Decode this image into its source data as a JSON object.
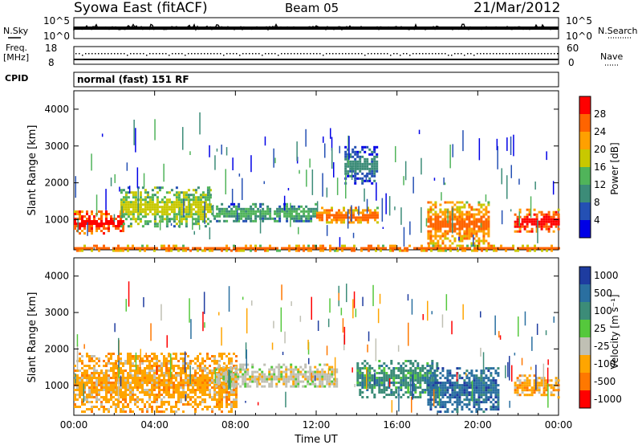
{
  "header": {
    "station": "Syowa East (fitACF)",
    "beam": "Beam 05",
    "date": "21/Mar/2012"
  },
  "top_panels": {
    "nsky_label": "N.Sky",
    "nsearch_label": "N.Search",
    "nsky_ticks": [
      "10^5",
      "10^0"
    ],
    "nsearch_ticks": [
      "10^5",
      "10^0"
    ],
    "freq_label_line1": "Freq.",
    "freq_label_line2": "[MHz]",
    "freq_ticks": [
      "18",
      "8"
    ],
    "nave_label": "Nave",
    "nave_ticks": [
      "60",
      "0"
    ],
    "cpid_label": "CPID",
    "cpid_text": "normal (fast) 151 RF"
  },
  "chart_data": [
    {
      "type": "heatmap",
      "name": "power",
      "title": "",
      "xlabel": "",
      "ylabel": "Slant Range [km]",
      "xlim": [
        "00:00",
        "24:00"
      ],
      "ylim": [
        180,
        4500
      ],
      "yticks": [
        "1000",
        "2000",
        "3000",
        "4000"
      ],
      "colorbar_label": "Power [dB]",
      "colorbar_ticks": [
        "4",
        "8",
        "12",
        "16",
        "20",
        "24",
        "28"
      ],
      "colors": [
        "#0000e6",
        "#2450b4",
        "#3c8c78",
        "#50b45a",
        "#c8c800",
        "#ffa000",
        "#ff6400",
        "#ff0000"
      ],
      "echo_regions": [
        {
          "t_start": 0.0,
          "t_end": 2.4,
          "r_min": 650,
          "r_max": 1250,
          "level": 7,
          "note": "strong"
        },
        {
          "t_start": 0.0,
          "t_end": 24.0,
          "r_min": 180,
          "r_max": 320,
          "level": 6
        },
        {
          "t_start": 2.3,
          "t_end": 6.8,
          "r_min": 800,
          "r_max": 1900,
          "level": 4
        },
        {
          "t_start": 6.8,
          "t_end": 12.0,
          "r_min": 950,
          "r_max": 1450,
          "level": 3
        },
        {
          "t_start": 12.0,
          "t_end": 15.0,
          "r_min": 900,
          "r_max": 1350,
          "level": 6
        },
        {
          "t_start": 13.4,
          "t_end": 15.0,
          "r_min": 2000,
          "r_max": 3000,
          "level": 2
        },
        {
          "t_start": 17.5,
          "t_end": 20.5,
          "r_min": 300,
          "r_max": 1500,
          "level": 6
        },
        {
          "t_start": 21.8,
          "t_end": 24.0,
          "r_min": 650,
          "r_max": 1300,
          "level": 7
        }
      ]
    },
    {
      "type": "heatmap",
      "name": "velocity",
      "title": "",
      "xlabel": "Time UT",
      "ylabel": "Slant Range [km]",
      "xlim": [
        "00:00",
        "24:00"
      ],
      "xticks": [
        "00:00",
        "04:00",
        "08:00",
        "12:00",
        "16:00",
        "20:00",
        "00:00"
      ],
      "ylim": [
        180,
        4500
      ],
      "yticks": [
        "1000",
        "2000",
        "3000",
        "4000"
      ],
      "colorbar_label": "Velocity [m s⁻¹]",
      "colorbar_ticks": [
        "1000",
        "500",
        "100",
        "25",
        "-25",
        "-100",
        "-500",
        "-1000"
      ],
      "colors": [
        "#1e3ca0",
        "#2a6fa0",
        "#3c8c78",
        "#55c83c",
        "#c0c0b4",
        "#ffa500",
        "#ff7800",
        "#ff0000"
      ],
      "echo_regions": [
        {
          "t_start": 0.0,
          "t_end": 8.0,
          "r_min": 300,
          "r_max": 1900,
          "velocity": "-100"
        },
        {
          "t_start": 7.0,
          "t_end": 13.0,
          "r_min": 950,
          "r_max": 1600,
          "velocity": "-25..25"
        },
        {
          "t_start": 14.0,
          "t_end": 18.0,
          "r_min": 700,
          "r_max": 1700,
          "velocity": "100"
        },
        {
          "t_start": 17.5,
          "t_end": 21.0,
          "r_min": 300,
          "r_max": 1500,
          "velocity": "500"
        },
        {
          "t_start": 21.8,
          "t_end": 24.0,
          "r_min": 700,
          "r_max": 1300,
          "velocity": "-100"
        }
      ]
    }
  ]
}
